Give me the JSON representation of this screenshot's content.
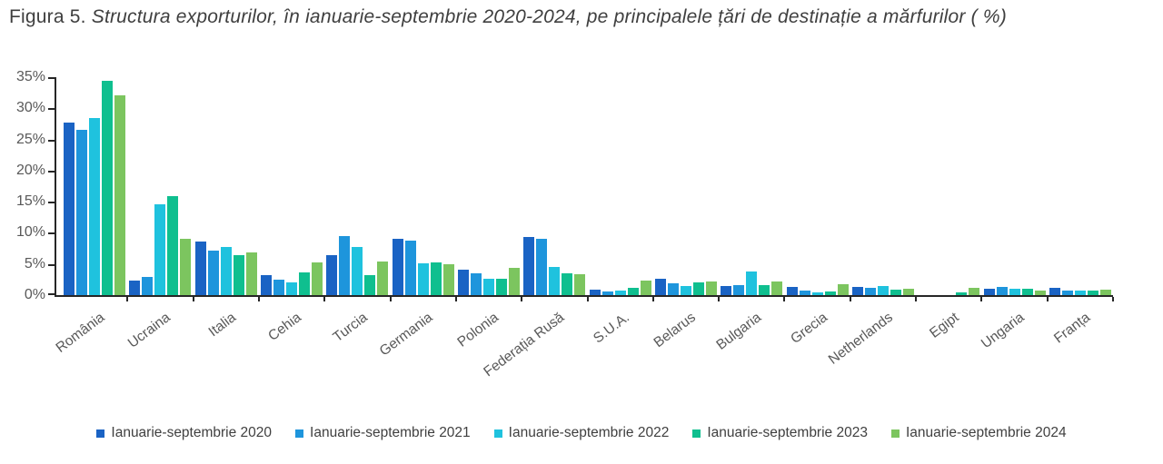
{
  "figure_caption": {
    "label": "Figura 5.",
    "title": "Structura exporturilor, în ianuarie-septembrie 2020-2024, pe principalele țări de destinație a mărfurilor ( %)"
  },
  "chart_data": {
    "type": "bar",
    "title": "Figura 5. Structura exporturilor, în ianuarie-septembrie 2020-2024, pe principalele țări de destinație a mărfurilor ( %)",
    "categories": [
      "România",
      "Ucraina",
      "Italia",
      "Cehia",
      "Turcia",
      "Germania",
      "Polonia",
      "Federația Rusă",
      "S.U.A.",
      "Belarus",
      "Bulgaria",
      "Grecia",
      "Netherlands",
      "Egipt",
      "Ungaria",
      "Franța"
    ],
    "series": [
      {
        "name": "Ianuarie-septembrie 2020",
        "color": "#1A63C4",
        "values": [
          27.7,
          2.3,
          8.6,
          3.2,
          6.4,
          9.0,
          4.1,
          9.3,
          0.9,
          2.6,
          1.4,
          1.3,
          1.3,
          0.0,
          1.0,
          1.1
        ]
      },
      {
        "name": "Ianuarie-septembrie 2021",
        "color": "#1E95DC",
        "values": [
          26.5,
          2.9,
          7.2,
          2.5,
          9.5,
          8.8,
          3.5,
          9.0,
          0.6,
          1.9,
          1.6,
          0.8,
          1.1,
          0.0,
          1.3,
          0.8
        ]
      },
      {
        "name": "Ianuarie-septembrie 2022",
        "color": "#1FC2DE",
        "values": [
          28.4,
          14.6,
          7.8,
          2.1,
          7.7,
          5.1,
          2.6,
          4.5,
          0.7,
          1.4,
          3.8,
          0.5,
          1.5,
          0.0,
          1.0,
          0.8
        ]
      },
      {
        "name": "Ianuarie-septembrie 2023",
        "color": "#0FBF8F",
        "values": [
          34.4,
          15.9,
          6.4,
          3.6,
          3.2,
          5.2,
          2.7,
          3.5,
          1.1,
          2.0,
          1.6,
          0.6,
          0.9,
          0.5,
          1.0,
          0.7
        ]
      },
      {
        "name": "Ianuarie-septembrie 2024",
        "color": "#7CC55F",
        "values": [
          32.1,
          9.1,
          6.9,
          5.3,
          5.4,
          4.9,
          4.4,
          3.4,
          2.3,
          2.2,
          2.2,
          1.8,
          1.0,
          1.1,
          0.8,
          0.9
        ]
      }
    ],
    "xlabel": "",
    "ylabel": "",
    "ylim": [
      0,
      35
    ],
    "ytick_step": 5,
    "ytick_suffix": "%",
    "grid": false,
    "legend_position": "bottom"
  },
  "style_colors": {
    "axis": "#262626",
    "tick_label": "#595959",
    "caption_text": "#3F3F3F",
    "legend_text": "#404040",
    "background": "#FFFFFF"
  }
}
